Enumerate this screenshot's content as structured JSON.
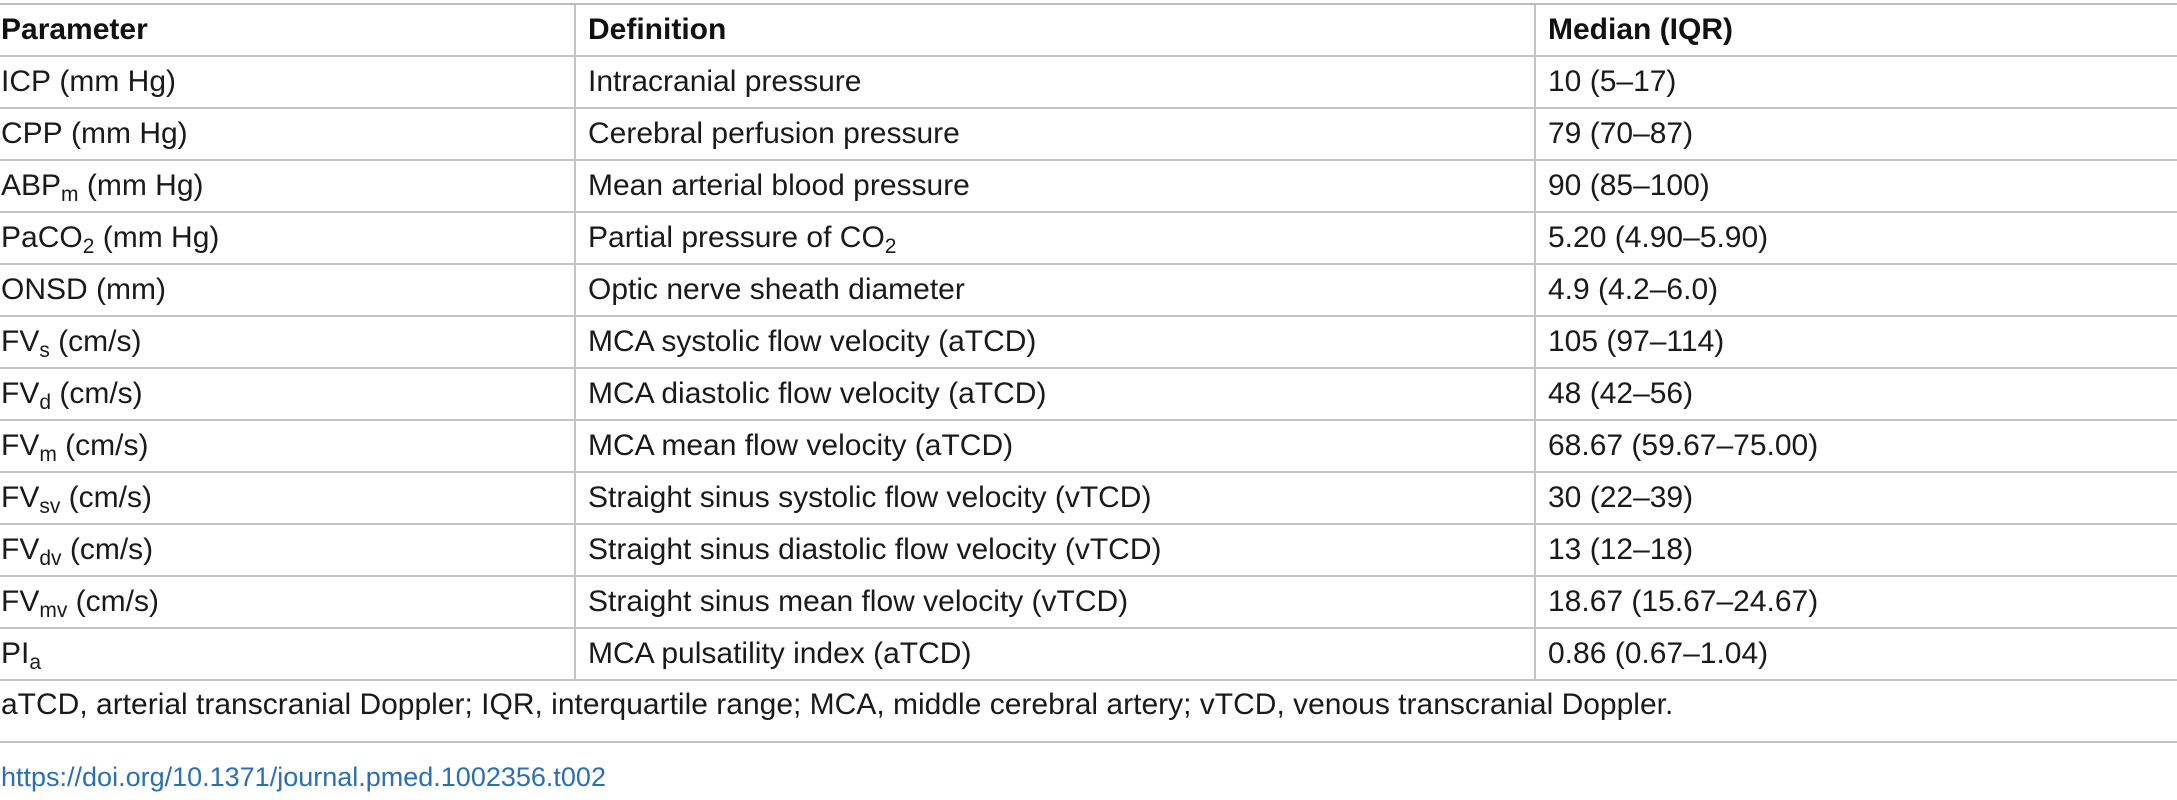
{
  "table": {
    "headers": [
      "Parameter",
      "Definition",
      "Median (IQR)"
    ],
    "rows": [
      {
        "param_base": "ICP",
        "param_sub": "",
        "param_rest": " (mm Hg)",
        "def_base": "Intracranial pressure",
        "def_sub": "",
        "def_rest": "",
        "median": "10 (5–17)"
      },
      {
        "param_base": "CPP",
        "param_sub": "",
        "param_rest": " (mm Hg)",
        "def_base": "Cerebral perfusion pressure",
        "def_sub": "",
        "def_rest": "",
        "median": "79 (70–87)"
      },
      {
        "param_base": "ABP",
        "param_sub": "m",
        "param_rest": " (mm Hg)",
        "def_base": "Mean arterial blood pressure",
        "def_sub": "",
        "def_rest": "",
        "median": "90 (85–100)"
      },
      {
        "param_base": "PaCO",
        "param_sub": "2",
        "param_rest": " (mm Hg)",
        "def_base": "Partial pressure of CO",
        "def_sub": "2",
        "def_rest": "",
        "median": "5.20 (4.90–5.90)"
      },
      {
        "param_base": "ONSD",
        "param_sub": "",
        "param_rest": " (mm)",
        "def_base": "Optic nerve sheath diameter",
        "def_sub": "",
        "def_rest": "",
        "median": "4.9 (4.2–6.0)"
      },
      {
        "param_base": "FV",
        "param_sub": "s",
        "param_rest": " (cm/s)",
        "def_base": "MCA systolic flow velocity (aTCD)",
        "def_sub": "",
        "def_rest": "",
        "median": "105 (97–114)"
      },
      {
        "param_base": "FV",
        "param_sub": "d",
        "param_rest": " (cm/s)",
        "def_base": "MCA diastolic flow velocity (aTCD)",
        "def_sub": "",
        "def_rest": "",
        "median": "48 (42–56)"
      },
      {
        "param_base": "FV",
        "param_sub": "m",
        "param_rest": " (cm/s)",
        "def_base": "MCA mean flow velocity (aTCD)",
        "def_sub": "",
        "def_rest": "",
        "median": "68.67 (59.67–75.00)"
      },
      {
        "param_base": "FV",
        "param_sub": "sv",
        "param_rest": " (cm/s)",
        "def_base": "Straight sinus systolic flow velocity (vTCD)",
        "def_sub": "",
        "def_rest": "",
        "median": "30 (22–39)"
      },
      {
        "param_base": "FV",
        "param_sub": "dv",
        "param_rest": " (cm/s)",
        "def_base": "Straight sinus diastolic flow velocity (vTCD)",
        "def_sub": "",
        "def_rest": "",
        "median": "13 (12–18)"
      },
      {
        "param_base": "FV",
        "param_sub": "mv",
        "param_rest": " (cm/s)",
        "def_base": "Straight sinus mean flow velocity (vTCD)",
        "def_sub": "",
        "def_rest": "",
        "median": "18.67 (15.67–24.67)"
      },
      {
        "param_base": "PI",
        "param_sub": "a",
        "param_rest": "",
        "def_base": "MCA pulsatility index (aTCD)",
        "def_sub": "",
        "def_rest": "",
        "median": "0.86 (0.67–1.04)"
      }
    ]
  },
  "footnote": "aTCD, arterial transcranial Doppler; IQR, interquartile range; MCA, middle cerebral artery; vTCD, venous transcranial Doppler.",
  "doi": "https://doi.org/10.1371/journal.pmed.1002356.t002",
  "colors": {
    "link": "#2a6fb5",
    "rule": "#c4c4c4",
    "text": "#1a1a1a"
  }
}
